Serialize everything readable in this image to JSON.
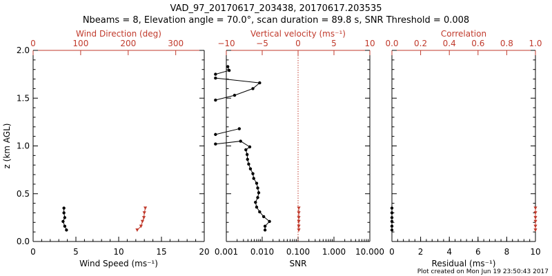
{
  "colors": {
    "axis": "#000000",
    "accent": "#c0392b",
    "background": "#ffffff"
  },
  "header": {
    "title_line1": "VAD_97_20170617_203438, 20170617.203535",
    "title_line2": "Nbeams = 8, Elevation angle = 70.0°, scan duration = 89.8 s, SNR Threshold = 0.008"
  },
  "footer": {
    "created": "Plot created on Mon Jun 19 23:50:43 2017"
  },
  "chart_data": [
    {
      "type": "line",
      "panel": "wind",
      "ylabel": "z (km AGL)",
      "ylim": [
        0.0,
        2.0
      ],
      "yticks": [
        0.0,
        0.5,
        1.0,
        1.5,
        2.0
      ],
      "ytick_labels": [
        "0.0",
        "0.5",
        "1.0",
        "1.5",
        "2.0"
      ],
      "xlabel_bottom": "Wind Speed (ms⁻¹)",
      "xlim_bottom": [
        0,
        20
      ],
      "xticks_bottom": [
        0,
        5,
        10,
        15,
        20
      ],
      "xtick_labels_bottom": [
        "0",
        "5",
        "10",
        "15",
        "20"
      ],
      "xlabel_top": "Wind Direction (deg)",
      "xlim_top": [
        0,
        360
      ],
      "xticks_top": [
        0,
        100,
        200,
        300
      ],
      "xtick_labels_top": [
        "0",
        "100",
        "200",
        "300"
      ],
      "series": [
        {
          "name": "Wind Speed",
          "axis": "bottom",
          "color": "#000000",
          "marker": "circle",
          "points": [
            [
              3.9,
              0.12
            ],
            [
              3.7,
              0.16
            ],
            [
              3.5,
              0.21
            ],
            [
              3.7,
              0.25
            ],
            [
              3.6,
              0.3
            ],
            [
              3.6,
              0.35
            ]
          ]
        },
        {
          "name": "Wind Direction",
          "axis": "top",
          "color": "#c0392b",
          "marker": "triangle",
          "points": [
            [
              219,
              0.12
            ],
            [
              227,
              0.16
            ],
            [
              230,
              0.21
            ],
            [
              233,
              0.25
            ],
            [
              234,
              0.3
            ],
            [
              236,
              0.35
            ]
          ]
        }
      ]
    },
    {
      "type": "line",
      "panel": "snr",
      "ylim": [
        0.0,
        2.0
      ],
      "xscale": "log",
      "xlabel_bottom": "SNR",
      "xlim_bottom": [
        0.001,
        10.0
      ],
      "xticks_bottom": [
        0.001,
        0.01,
        0.1,
        1.0,
        10.0
      ],
      "xtick_labels_bottom": [
        "0.001",
        "0.010",
        "0.100",
        "1.000",
        "10.000"
      ],
      "xlabel_top": "Vertical velocity (ms⁻¹)",
      "xlim_top": [
        -10,
        10
      ],
      "xticks_top": [
        -10,
        -5,
        0,
        5,
        10
      ],
      "xtick_labels_top": [
        "−10",
        "−5",
        "0",
        "5",
        "10"
      ],
      "reference_line": {
        "axis": "top",
        "value": 0,
        "style": "dotted",
        "color": "#c0392b"
      },
      "series": [
        {
          "name": "SNR",
          "axis": "bottom",
          "color": "#000000",
          "marker": "circle",
          "points": [
            [
              0.012,
              0.12
            ],
            [
              0.012,
              0.16
            ],
            [
              0.016,
              0.21
            ],
            [
              0.011,
              0.26
            ],
            [
              0.0085,
              0.31
            ],
            [
              0.007,
              0.36
            ],
            [
              0.0065,
              0.41
            ],
            [
              0.0075,
              0.46
            ],
            [
              0.008,
              0.51
            ],
            [
              0.0075,
              0.56
            ],
            [
              0.007,
              0.61
            ],
            [
              0.0058,
              0.66
            ],
            [
              0.0055,
              0.71
            ],
            [
              0.0047,
              0.76
            ],
            [
              0.0042,
              0.81
            ],
            [
              0.0039,
              0.86
            ],
            [
              0.0038,
              0.91
            ],
            [
              0.0035,
              0.96
            ],
            [
              0.0045,
              0.99
            ],
            [
              0.0025,
              1.05
            ],
            [
              0.0005,
              1.02
            ],
            null,
            [
              0.0005,
              1.12
            ],
            [
              0.0023,
              1.18
            ],
            null,
            [
              0.0005,
              1.48
            ],
            [
              0.0017,
              1.53
            ],
            [
              0.0055,
              1.6
            ],
            [
              0.0085,
              1.66
            ],
            [
              0.0005,
              1.71
            ],
            null,
            [
              0.0005,
              1.75
            ],
            [
              0.0012,
              1.79
            ],
            [
              0.0011,
              1.83
            ]
          ]
        },
        {
          "name": "Vertical velocity",
          "axis": "top",
          "color": "#c0392b",
          "marker": "triangle",
          "points": [
            [
              0.1,
              0.12
            ],
            [
              0.1,
              0.16
            ],
            [
              0.1,
              0.21
            ],
            [
              0.1,
              0.25
            ],
            [
              0.1,
              0.3
            ],
            [
              0.1,
              0.35
            ]
          ]
        }
      ]
    },
    {
      "type": "line",
      "panel": "residual",
      "ylim": [
        0.0,
        2.0
      ],
      "xlabel_bottom": "Residual (ms⁻¹)",
      "xlim_bottom": [
        0,
        10
      ],
      "xticks_bottom": [
        0,
        2,
        4,
        6,
        8,
        10
      ],
      "xtick_labels_bottom": [
        "0",
        "2",
        "4",
        "6",
        "8",
        "10"
      ],
      "xlabel_top": "Correlation",
      "xlim_top": [
        0.0,
        1.0
      ],
      "xticks_top": [
        0.0,
        0.2,
        0.4,
        0.6,
        0.8,
        1.0
      ],
      "xtick_labels_top": [
        "0.0",
        "0.2",
        "0.4",
        "0.6",
        "0.8",
        "1.0"
      ],
      "series": [
        {
          "name": "Residual",
          "axis": "bottom",
          "color": "#000000",
          "marker": "circle",
          "points": [
            [
              0.0,
              0.12
            ],
            [
              0.0,
              0.16
            ],
            [
              0.0,
              0.21
            ],
            [
              0.0,
              0.25
            ],
            [
              0.0,
              0.3
            ],
            [
              0.0,
              0.35
            ]
          ]
        },
        {
          "name": "Correlation",
          "axis": "top",
          "color": "#c0392b",
          "marker": "triangle",
          "points": [
            [
              1.0,
              0.12
            ],
            [
              1.0,
              0.16
            ],
            [
              1.0,
              0.21
            ],
            [
              1.0,
              0.25
            ],
            [
              1.0,
              0.3
            ],
            [
              1.0,
              0.35
            ]
          ]
        }
      ]
    }
  ]
}
